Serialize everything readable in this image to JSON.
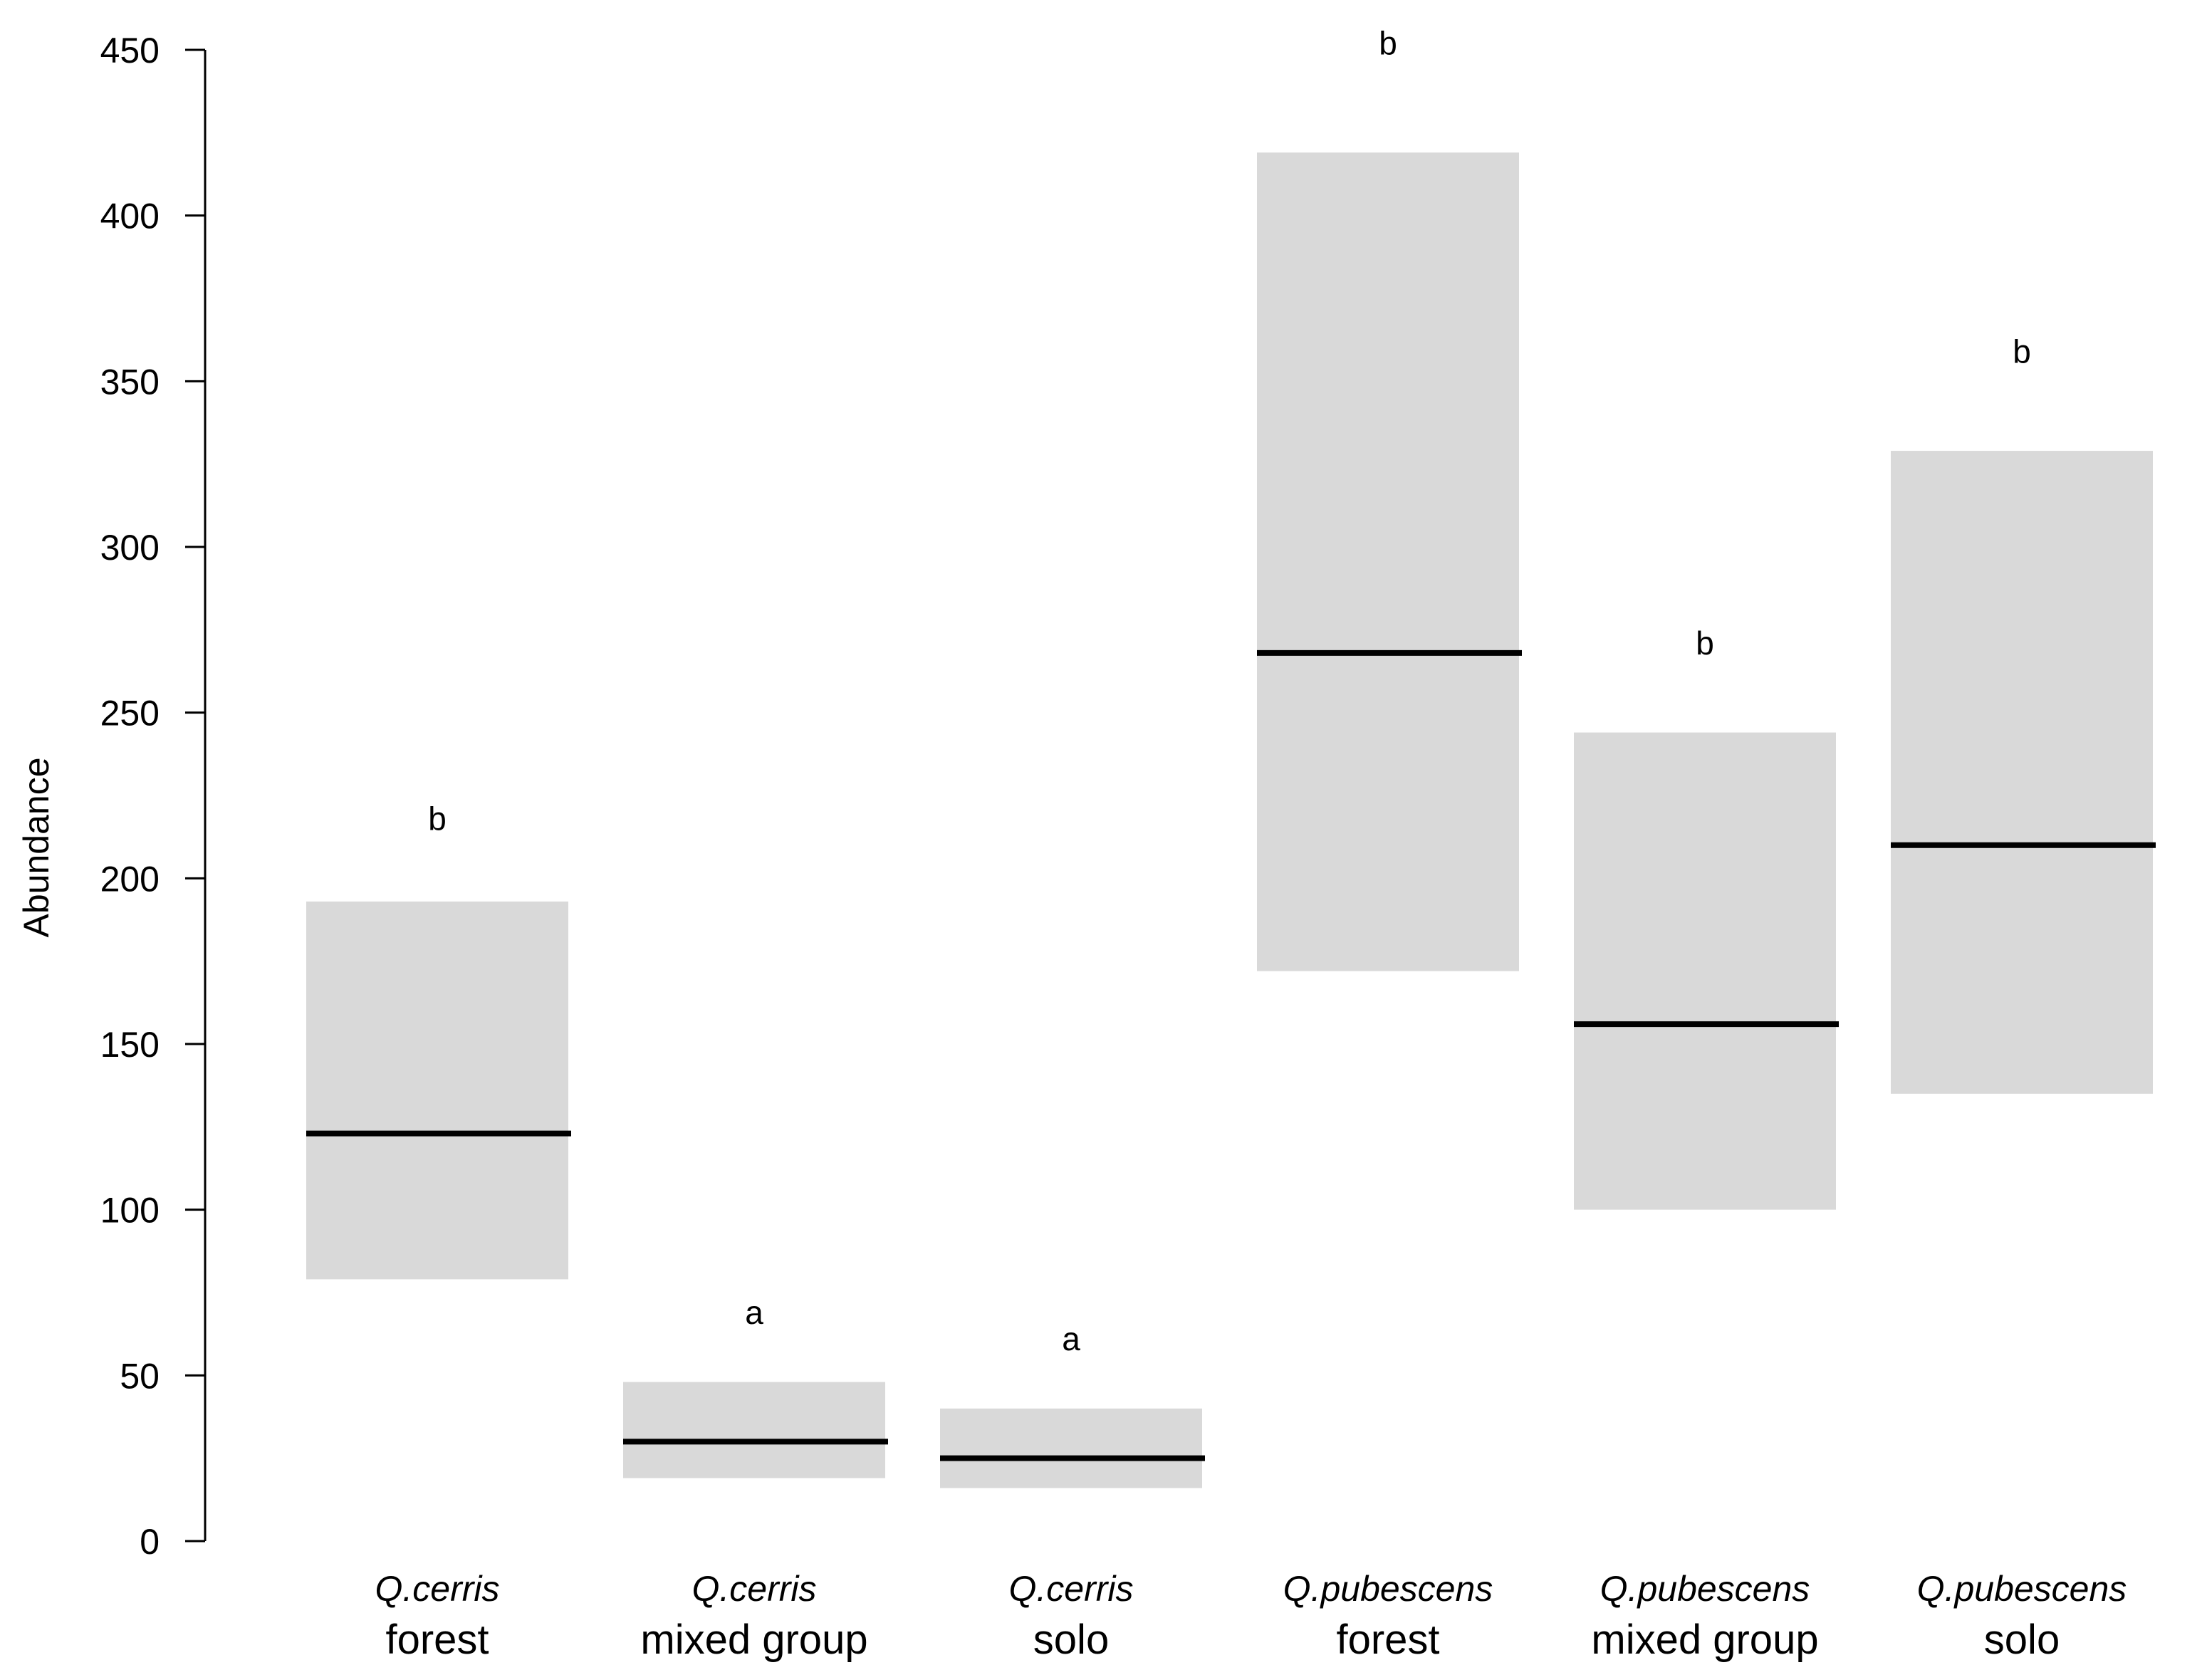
{
  "chart_data": {
    "type": "box",
    "ylabel": "Abundance",
    "xlabel": "",
    "title": "",
    "ylim": [
      0,
      450
    ],
    "yticks": [
      0,
      50,
      100,
      150,
      200,
      250,
      300,
      350,
      400,
      450
    ],
    "grid": false,
    "legend": "none",
    "box_color": "#d9d9d9",
    "line_color": "#000000",
    "categories": [
      {
        "species": "Q.cerris",
        "group": "forest",
        "low": 79,
        "mid": 123,
        "high": 193,
        "letter": "b",
        "letter_y": 218
      },
      {
        "species": "Q.cerris",
        "group": "mixed group",
        "low": 19,
        "mid": 30,
        "high": 48,
        "letter": "a",
        "letter_y": 69
      },
      {
        "species": "Q.cerris",
        "group": "solo",
        "low": 16,
        "mid": 25,
        "high": 40,
        "letter": "a",
        "letter_y": 61
      },
      {
        "species": "Q.pubescens",
        "group": "forest",
        "low": 172,
        "mid": 268,
        "high": 419,
        "letter": "b",
        "letter_y": 452
      },
      {
        "species": "Q.pubescens",
        "group": "mixed group",
        "low": 100,
        "mid": 156,
        "high": 244,
        "letter": "b",
        "letter_y": 271
      },
      {
        "species": "Q.pubescens",
        "group": "solo",
        "low": 135,
        "mid": 210,
        "high": 329,
        "letter": "b",
        "letter_y": 359
      }
    ]
  }
}
